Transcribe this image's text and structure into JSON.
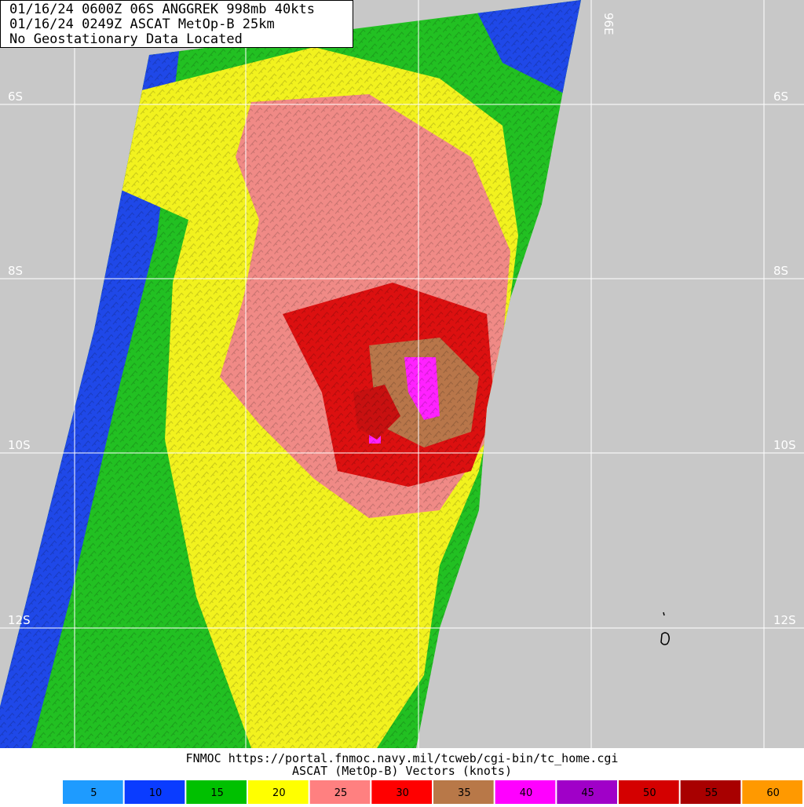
{
  "header": {
    "lines": [
      "01/16/24 0600Z  06S ANGGREK 998mb 40kts",
      "01/16/24 0249Z  ASCAT MetOp-B 25km",
      "No Geostationary Data Located"
    ]
  },
  "map": {
    "lat_labels": [
      "6S",
      "8S",
      "10S",
      "12S"
    ],
    "lon_label": "96E"
  },
  "footer": {
    "source": "FNMOC https://portal.fnmoc.navy.mil/tcweb/cgi-bin/tc_home.cgi",
    "caption": "ASCAT (MetOp-B) Vectors (knots)"
  },
  "legend": {
    "items": [
      {
        "label": "5",
        "color": "#1e9bff"
      },
      {
        "label": "10",
        "color": "#0a3cff"
      },
      {
        "label": "15",
        "color": "#00c000"
      },
      {
        "label": "20",
        "color": "#ffff00"
      },
      {
        "label": "25",
        "color": "#ff8080"
      },
      {
        "label": "30",
        "color": "#ff0000"
      },
      {
        "label": "35",
        "color": "#b87848"
      },
      {
        "label": "40",
        "color": "#ff00ff"
      },
      {
        "label": "45",
        "color": "#a000c8"
      },
      {
        "label": "50",
        "color": "#d40000"
      },
      {
        "label": "55",
        "color": "#a80000"
      },
      {
        "label": "60",
        "color": "#ff9900"
      }
    ]
  }
}
